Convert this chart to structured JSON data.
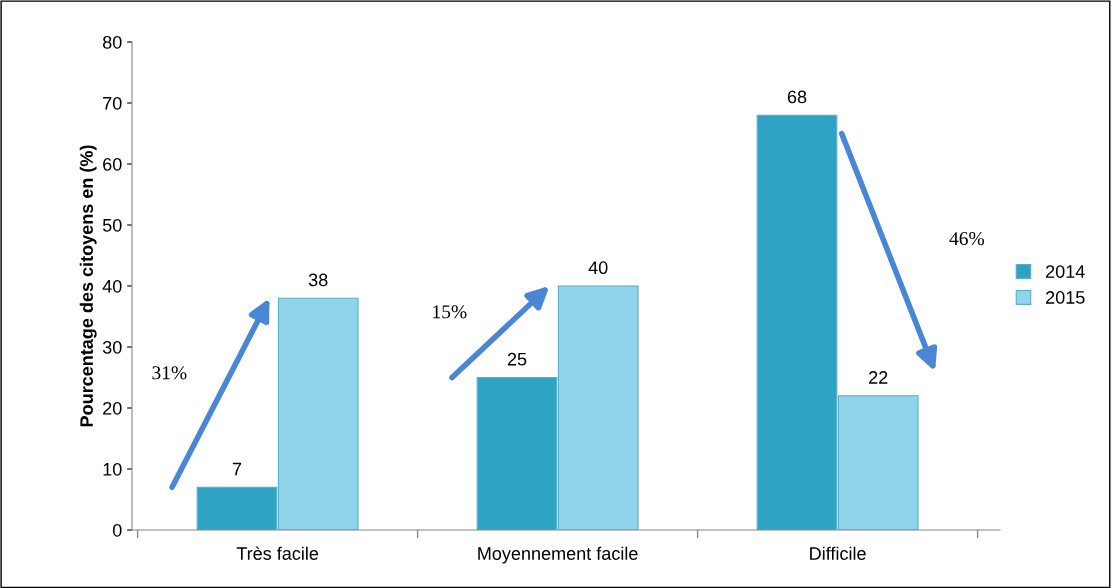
{
  "chart_data": {
    "type": "bar",
    "ylabel": "Pourcentage des citoyens en (%)",
    "categories": [
      "Très facile",
      "Moyennement facile",
      "Difficile"
    ],
    "series": [
      {
        "name": "2014",
        "color": "#2fa3c4",
        "values": [
          7,
          25,
          68
        ]
      },
      {
        "name": "2015",
        "color": "#8fd4ea",
        "values": [
          38,
          40,
          22
        ]
      }
    ],
    "ylim": [
      0,
      80
    ],
    "yticks": [
      0,
      10,
      20,
      30,
      40,
      50,
      60,
      70,
      80
    ],
    "grid": false,
    "legend": "right",
    "data_labels": true,
    "annotations": [
      "31%",
      "15%",
      "46%"
    ]
  }
}
